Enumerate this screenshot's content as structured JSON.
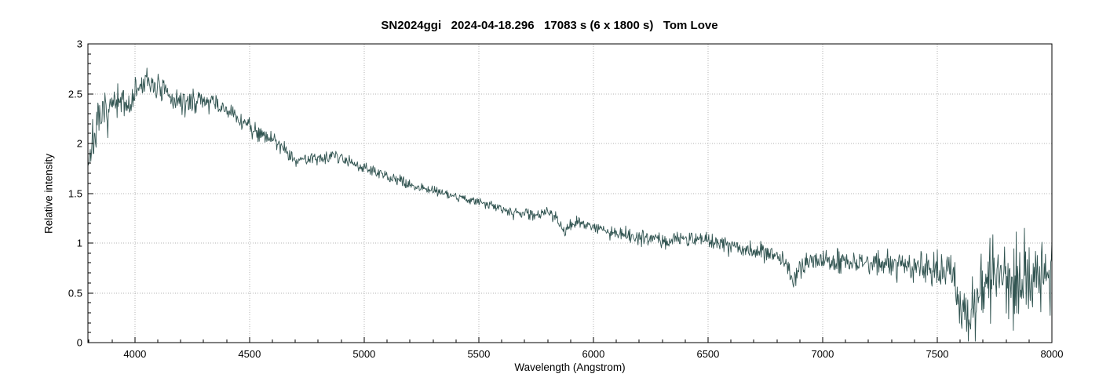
{
  "title": "SN2024ggi   2024-04-18.296   17083 s (6 x 1800 s)   Tom Love",
  "chart_data": {
    "type": "line",
    "title": "SN2024ggi   2024-04-18.296   17083 s (6 x 1800 s)   Tom Love",
    "xlabel": "Wavelength (Angstrom)",
    "ylabel": "Relative intensity",
    "xlim": [
      3795,
      8000
    ],
    "ylim": [
      0,
      3
    ],
    "grid": "dotted gray lines at major ticks, full box frame, inward ticks",
    "legend": "none",
    "x_tick_values": [
      4000,
      4500,
      5000,
      5500,
      6000,
      6500,
      7000,
      7500,
      8000
    ],
    "x_tick_labels": [
      "4000",
      "4500",
      "5000",
      "5500",
      "6000",
      "6500",
      "7000",
      "7500",
      "8000"
    ],
    "x_minor_step": 100,
    "y_tick_values": [
      0,
      0.5,
      1,
      1.5,
      2,
      2.5,
      3
    ],
    "y_tick_labels": [
      "0",
      "0.5",
      "1",
      "1.5",
      "2",
      "2.5",
      "3"
    ],
    "y_minor_step": 0.1,
    "line_color": "#315451",
    "grid_color": "#b3b3b3",
    "axis_color": "#000000",
    "series": [
      {
        "name": "SN2024ggi optical spectrum",
        "samples": 1650,
        "seed": 7,
        "continuum_anchors": [
          [
            3795,
            1.85
          ],
          [
            3810,
            1.95
          ],
          [
            3825,
            2.08
          ],
          [
            3845,
            2.2
          ],
          [
            3870,
            2.3
          ],
          [
            3900,
            2.38
          ],
          [
            3925,
            2.36
          ],
          [
            3950,
            2.42
          ],
          [
            3975,
            2.38
          ],
          [
            4000,
            2.5
          ],
          [
            4030,
            2.58
          ],
          [
            4060,
            2.62
          ],
          [
            4090,
            2.58
          ],
          [
            4130,
            2.5
          ],
          [
            4170,
            2.44
          ],
          [
            4210,
            2.4
          ],
          [
            4260,
            2.43
          ],
          [
            4310,
            2.43
          ],
          [
            4360,
            2.38
          ],
          [
            4420,
            2.3
          ],
          [
            4480,
            2.2
          ],
          [
            4540,
            2.12
          ],
          [
            4600,
            2.04
          ],
          [
            4650,
            1.96
          ],
          [
            4700,
            1.83
          ],
          [
            4750,
            1.84
          ],
          [
            4800,
            1.86
          ],
          [
            4850,
            1.88
          ],
          [
            4900,
            1.86
          ],
          [
            4950,
            1.81
          ],
          [
            5000,
            1.76
          ],
          [
            5060,
            1.7
          ],
          [
            5120,
            1.65
          ],
          [
            5180,
            1.6
          ],
          [
            5250,
            1.56
          ],
          [
            5320,
            1.52
          ],
          [
            5400,
            1.47
          ],
          [
            5480,
            1.42
          ],
          [
            5550,
            1.38
          ],
          [
            5620,
            1.33
          ],
          [
            5700,
            1.29
          ],
          [
            5760,
            1.29
          ],
          [
            5800,
            1.31
          ],
          [
            5840,
            1.26
          ],
          [
            5870,
            1.11
          ],
          [
            5900,
            1.2
          ],
          [
            5950,
            1.19
          ],
          [
            6000,
            1.16
          ],
          [
            6060,
            1.12
          ],
          [
            6120,
            1.09
          ],
          [
            6180,
            1.07
          ],
          [
            6240,
            1.05
          ],
          [
            6300,
            1.03
          ],
          [
            6380,
            1.04
          ],
          [
            6450,
            1.05
          ],
          [
            6520,
            1.02
          ],
          [
            6580,
            0.98
          ],
          [
            6650,
            0.95
          ],
          [
            6720,
            0.92
          ],
          [
            6780,
            0.89
          ],
          [
            6830,
            0.85
          ],
          [
            6855,
            0.72
          ],
          [
            6875,
            0.62
          ],
          [
            6895,
            0.72
          ],
          [
            6920,
            0.79
          ],
          [
            6960,
            0.82
          ],
          [
            7000,
            0.83
          ],
          [
            7060,
            0.81
          ],
          [
            7120,
            0.8
          ],
          [
            7180,
            0.8
          ],
          [
            7240,
            0.79
          ],
          [
            7300,
            0.78
          ],
          [
            7360,
            0.77
          ],
          [
            7420,
            0.78
          ],
          [
            7480,
            0.76
          ],
          [
            7540,
            0.74
          ],
          [
            7580,
            0.66
          ],
          [
            7610,
            0.28
          ],
          [
            7630,
            0.14
          ],
          [
            7650,
            0.3
          ],
          [
            7675,
            0.48
          ],
          [
            7700,
            0.6
          ],
          [
            7740,
            0.65
          ],
          [
            7790,
            0.66
          ],
          [
            7850,
            0.64
          ],
          [
            7900,
            0.63
          ],
          [
            7950,
            0.63
          ],
          [
            8000,
            0.66
          ]
        ],
        "noise_sigma_anchors": [
          [
            3795,
            0.13
          ],
          [
            3850,
            0.1
          ],
          [
            3950,
            0.09
          ],
          [
            4050,
            0.07
          ],
          [
            4200,
            0.06
          ],
          [
            4400,
            0.05
          ],
          [
            4600,
            0.042
          ],
          [
            4800,
            0.035
          ],
          [
            5000,
            0.03
          ],
          [
            5300,
            0.026
          ],
          [
            5600,
            0.026
          ],
          [
            5900,
            0.03
          ],
          [
            6200,
            0.034
          ],
          [
            6500,
            0.04
          ],
          [
            6800,
            0.048
          ],
          [
            7000,
            0.055
          ],
          [
            7200,
            0.065
          ],
          [
            7400,
            0.085
          ],
          [
            7550,
            0.11
          ],
          [
            7650,
            0.16
          ],
          [
            7720,
            0.2
          ],
          [
            7850,
            0.22
          ],
          [
            8000,
            0.22
          ]
        ],
        "notable_features": [
          "steep rise at blue end from ~1.8 at 3795 A",
          "broad peak ~2.62 near 4060 A",
          "secondary plateau ~2.43 near 4250-4350 A",
          "step down to ~1.83 near 4700 A then small bump ~1.88 at 4850 A",
          "smooth decline through 1.5 near 5350 A and 1.0 near 6500 A",
          "narrow absorption dip to ~1.1 near 5870 A",
          "telluric absorption dip to ~0.62 near 6875 A",
          "deep telluric A-band dip to ~0.1 near 7620 A",
          "very noisy red end oscillating 0.2-1.25 around ~0.65 up to 8000 A"
        ]
      }
    ]
  }
}
